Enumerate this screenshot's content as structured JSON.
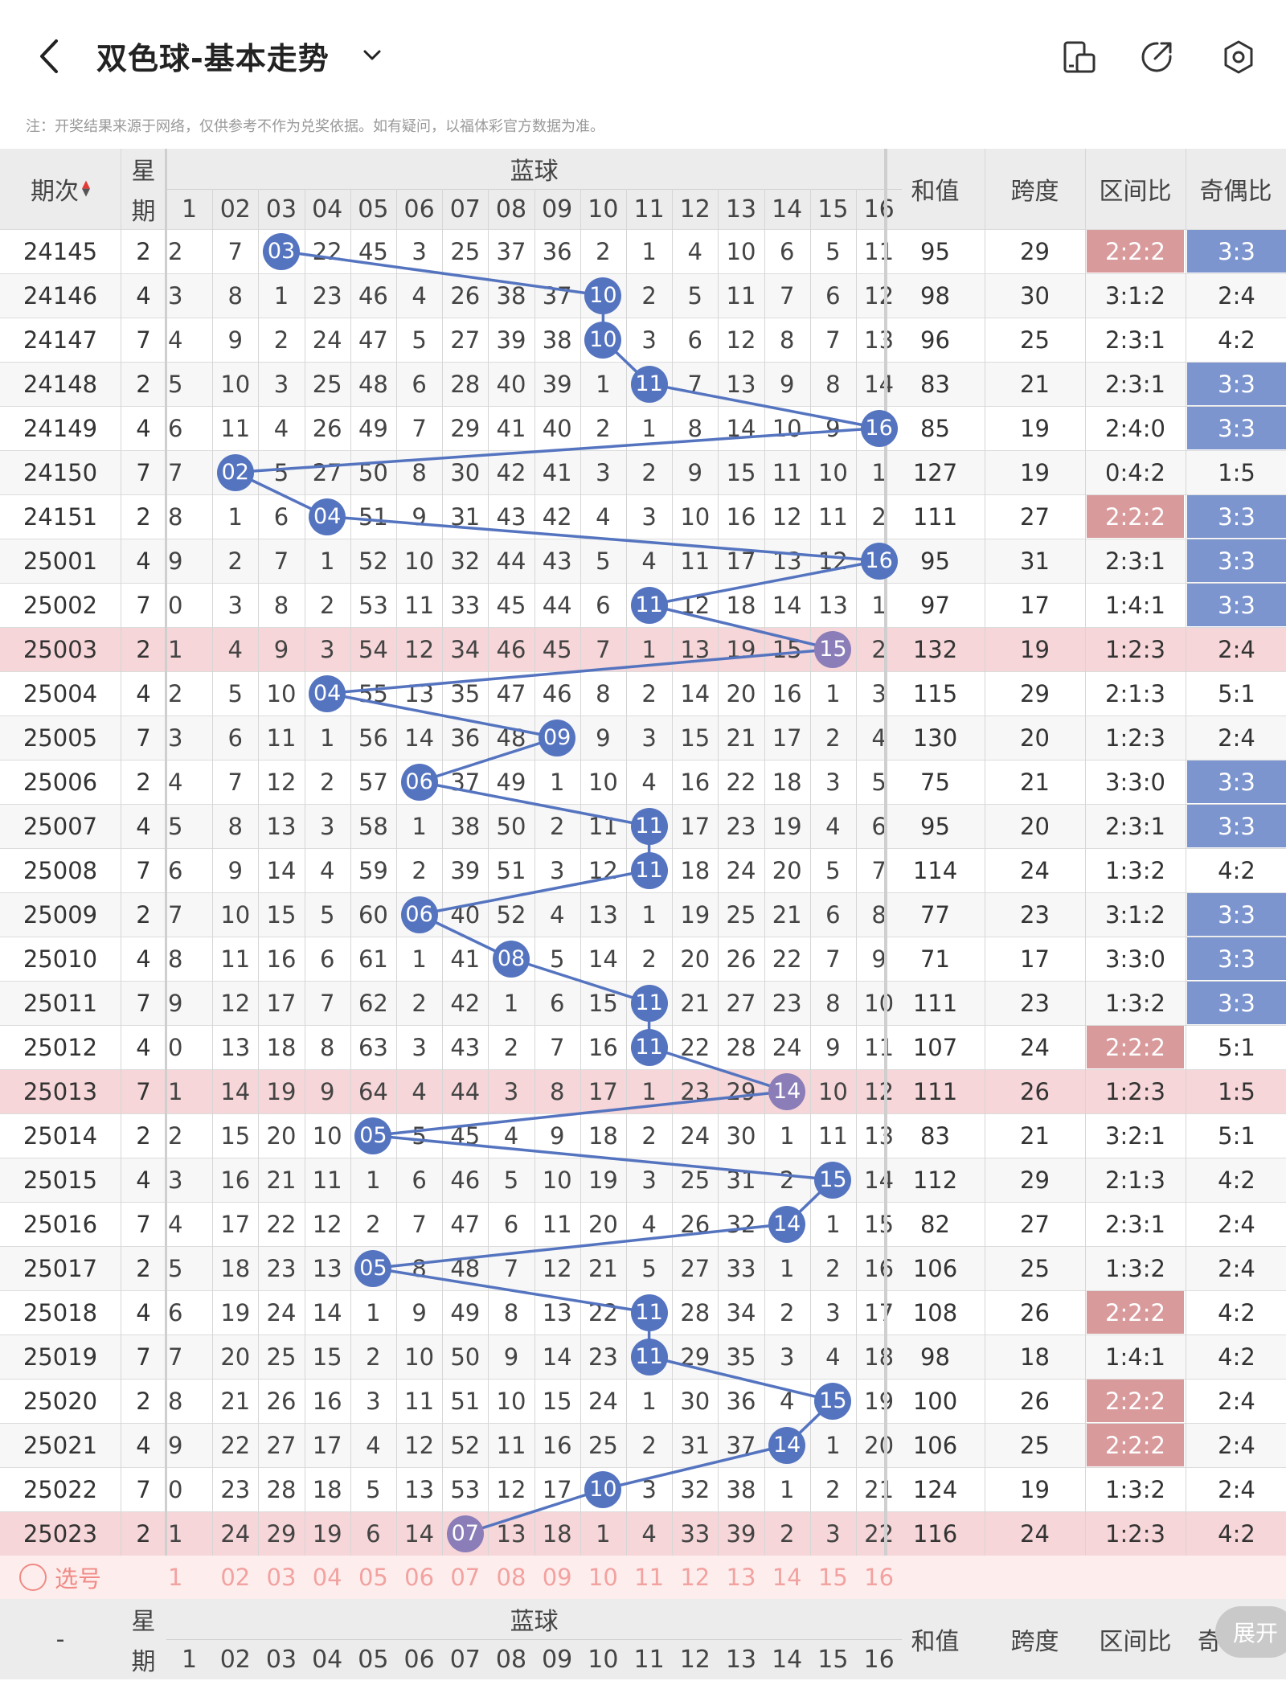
{
  "header": {
    "title": "双色球-基本走势",
    "back_icon": "chevron-left-icon",
    "caret_icon": "chevron-down-icon",
    "icons": [
      "layout-icon",
      "share-icon",
      "settings-icon"
    ]
  },
  "notice": "注：开奖结果来源于网络，仅供参考不作为兑奖依据。如有疑问，以福体彩官方数据为准。",
  "columns": {
    "period": "期次",
    "week_top": "星",
    "week_bottom": "期",
    "blue_title": "蓝球",
    "blue_numbers": [
      "1",
      "02",
      "03",
      "04",
      "05",
      "06",
      "07",
      "08",
      "09",
      "10",
      "11",
      "12",
      "13",
      "14",
      "15",
      "16"
    ],
    "sum": "和值",
    "span": "跨度",
    "zone": "区间比",
    "odd": "奇偶比"
  },
  "footer": {
    "dash": "-",
    "pick_label": "选号",
    "pick_numbers": [
      "1",
      "02",
      "03",
      "04",
      "05",
      "06",
      "07",
      "08",
      "09",
      "10",
      "11",
      "12",
      "13",
      "14",
      "15",
      "16"
    ],
    "odd_partial": "奇",
    "expand_label": "展开"
  },
  "colors": {
    "ball": "#5574c0",
    "ball_highlight": "#8a7db8",
    "zone_highlight": "#d99a9c",
    "odd_highlight": "#7c95cf",
    "row_highlight": "#f6d6d8"
  },
  "rows": [
    {
      "period": "24145",
      "week": "2",
      "cells": [
        "2",
        "7",
        "03",
        "22",
        "45",
        "3",
        "25",
        "37",
        "36",
        "2",
        "1",
        "4",
        "10",
        "6",
        "5",
        "11"
      ],
      "ball": 3,
      "sum": "95",
      "span": "29",
      "zone": "2:2:2",
      "odd": "3:3",
      "zone_hl": true,
      "odd_hl": true,
      "row_hl": false
    },
    {
      "period": "24146",
      "week": "4",
      "cells": [
        "3",
        "8",
        "1",
        "23",
        "46",
        "4",
        "26",
        "38",
        "37",
        "10",
        "2",
        "5",
        "11",
        "7",
        "6",
        "12"
      ],
      "ball": 10,
      "sum": "98",
      "span": "30",
      "zone": "3:1:2",
      "odd": "2:4",
      "zone_hl": false,
      "odd_hl": false,
      "row_hl": false
    },
    {
      "period": "24147",
      "week": "7",
      "cells": [
        "4",
        "9",
        "2",
        "24",
        "47",
        "5",
        "27",
        "39",
        "38",
        "10",
        "3",
        "6",
        "12",
        "8",
        "7",
        "13"
      ],
      "ball": 10,
      "sum": "96",
      "span": "25",
      "zone": "2:3:1",
      "odd": "4:2",
      "zone_hl": false,
      "odd_hl": false,
      "row_hl": false
    },
    {
      "period": "24148",
      "week": "2",
      "cells": [
        "5",
        "10",
        "3",
        "25",
        "48",
        "6",
        "28",
        "40",
        "39",
        "1",
        "11",
        "7",
        "13",
        "9",
        "8",
        "14"
      ],
      "ball": 11,
      "sum": "83",
      "span": "21",
      "zone": "2:3:1",
      "odd": "3:3",
      "zone_hl": false,
      "odd_hl": true,
      "row_hl": false
    },
    {
      "period": "24149",
      "week": "4",
      "cells": [
        "6",
        "11",
        "4",
        "26",
        "49",
        "7",
        "29",
        "41",
        "40",
        "2",
        "1",
        "8",
        "14",
        "10",
        "9",
        "16"
      ],
      "ball": 16,
      "sum": "85",
      "span": "19",
      "zone": "2:4:0",
      "odd": "3:3",
      "zone_hl": false,
      "odd_hl": true,
      "row_hl": false
    },
    {
      "period": "24150",
      "week": "7",
      "cells": [
        "7",
        "02",
        "5",
        "27",
        "50",
        "8",
        "30",
        "42",
        "41",
        "3",
        "2",
        "9",
        "15",
        "11",
        "10",
        "1"
      ],
      "ball": 2,
      "sum": "127",
      "span": "19",
      "zone": "0:4:2",
      "odd": "1:5",
      "zone_hl": false,
      "odd_hl": false,
      "row_hl": false
    },
    {
      "period": "24151",
      "week": "2",
      "cells": [
        "8",
        "1",
        "6",
        "04",
        "51",
        "9",
        "31",
        "43",
        "42",
        "4",
        "3",
        "10",
        "16",
        "12",
        "11",
        "2"
      ],
      "ball": 4,
      "sum": "111",
      "span": "27",
      "zone": "2:2:2",
      "odd": "3:3",
      "zone_hl": true,
      "odd_hl": true,
      "row_hl": false
    },
    {
      "period": "25001",
      "week": "4",
      "cells": [
        "9",
        "2",
        "7",
        "1",
        "52",
        "10",
        "32",
        "44",
        "43",
        "5",
        "4",
        "11",
        "17",
        "13",
        "12",
        "16"
      ],
      "ball": 16,
      "sum": "95",
      "span": "31",
      "zone": "2:3:1",
      "odd": "3:3",
      "zone_hl": false,
      "odd_hl": true,
      "row_hl": false
    },
    {
      "period": "25002",
      "week": "7",
      "cells": [
        "0",
        "3",
        "8",
        "2",
        "53",
        "11",
        "33",
        "45",
        "44",
        "6",
        "11",
        "12",
        "18",
        "14",
        "13",
        "1"
      ],
      "ball": 11,
      "sum": "97",
      "span": "17",
      "zone": "1:4:1",
      "odd": "3:3",
      "zone_hl": false,
      "odd_hl": true,
      "row_hl": false
    },
    {
      "period": "25003",
      "week": "2",
      "cells": [
        "1",
        "4",
        "9",
        "3",
        "54",
        "12",
        "34",
        "46",
        "45",
        "7",
        "1",
        "13",
        "19",
        "15",
        "15",
        "2"
      ],
      "ball": 15,
      "sum": "132",
      "span": "19",
      "zone": "1:2:3",
      "odd": "2:4",
      "zone_hl": false,
      "odd_hl": false,
      "row_hl": true
    },
    {
      "period": "25004",
      "week": "4",
      "cells": [
        "2",
        "5",
        "10",
        "04",
        "55",
        "13",
        "35",
        "47",
        "46",
        "8",
        "2",
        "14",
        "20",
        "16",
        "1",
        "3"
      ],
      "ball": 4,
      "sum": "115",
      "span": "29",
      "zone": "2:1:3",
      "odd": "5:1",
      "zone_hl": false,
      "odd_hl": false,
      "row_hl": false
    },
    {
      "period": "25005",
      "week": "7",
      "cells": [
        "3",
        "6",
        "11",
        "1",
        "56",
        "14",
        "36",
        "48",
        "09",
        "9",
        "3",
        "15",
        "21",
        "17",
        "2",
        "4"
      ],
      "ball": 9,
      "sum": "130",
      "span": "20",
      "zone": "1:2:3",
      "odd": "2:4",
      "zone_hl": false,
      "odd_hl": false,
      "row_hl": false
    },
    {
      "period": "25006",
      "week": "2",
      "cells": [
        "4",
        "7",
        "12",
        "2",
        "57",
        "06",
        "37",
        "49",
        "1",
        "10",
        "4",
        "16",
        "22",
        "18",
        "3",
        "5"
      ],
      "ball": 6,
      "sum": "75",
      "span": "21",
      "zone": "3:3:0",
      "odd": "3:3",
      "zone_hl": false,
      "odd_hl": true,
      "row_hl": false
    },
    {
      "period": "25007",
      "week": "4",
      "cells": [
        "5",
        "8",
        "13",
        "3",
        "58",
        "1",
        "38",
        "50",
        "2",
        "11",
        "11",
        "17",
        "23",
        "19",
        "4",
        "6"
      ],
      "ball": 11,
      "sum": "95",
      "span": "20",
      "zone": "2:3:1",
      "odd": "3:3",
      "zone_hl": false,
      "odd_hl": true,
      "row_hl": false
    },
    {
      "period": "25008",
      "week": "7",
      "cells": [
        "6",
        "9",
        "14",
        "4",
        "59",
        "2",
        "39",
        "51",
        "3",
        "12",
        "11",
        "18",
        "24",
        "20",
        "5",
        "7"
      ],
      "ball": 11,
      "sum": "114",
      "span": "24",
      "zone": "1:3:2",
      "odd": "4:2",
      "zone_hl": false,
      "odd_hl": false,
      "row_hl": false
    },
    {
      "period": "25009",
      "week": "2",
      "cells": [
        "7",
        "10",
        "15",
        "5",
        "60",
        "06",
        "40",
        "52",
        "4",
        "13",
        "1",
        "19",
        "25",
        "21",
        "6",
        "8"
      ],
      "ball": 6,
      "sum": "77",
      "span": "23",
      "zone": "3:1:2",
      "odd": "3:3",
      "zone_hl": false,
      "odd_hl": true,
      "row_hl": false
    },
    {
      "period": "25010",
      "week": "4",
      "cells": [
        "8",
        "11",
        "16",
        "6",
        "61",
        "1",
        "41",
        "08",
        "5",
        "14",
        "2",
        "20",
        "26",
        "22",
        "7",
        "9"
      ],
      "ball": 8,
      "sum": "71",
      "span": "17",
      "zone": "3:3:0",
      "odd": "3:3",
      "zone_hl": false,
      "odd_hl": true,
      "row_hl": false
    },
    {
      "period": "25011",
      "week": "7",
      "cells": [
        "9",
        "12",
        "17",
        "7",
        "62",
        "2",
        "42",
        "1",
        "6",
        "15",
        "11",
        "21",
        "27",
        "23",
        "8",
        "10"
      ],
      "ball": 11,
      "sum": "111",
      "span": "23",
      "zone": "1:3:2",
      "odd": "3:3",
      "zone_hl": false,
      "odd_hl": true,
      "row_hl": false
    },
    {
      "period": "25012",
      "week": "4",
      "cells": [
        "0",
        "13",
        "18",
        "8",
        "63",
        "3",
        "43",
        "2",
        "7",
        "16",
        "11",
        "22",
        "28",
        "24",
        "9",
        "11"
      ],
      "ball": 11,
      "sum": "107",
      "span": "24",
      "zone": "2:2:2",
      "odd": "5:1",
      "zone_hl": true,
      "odd_hl": false,
      "row_hl": false
    },
    {
      "period": "25013",
      "week": "7",
      "cells": [
        "1",
        "14",
        "19",
        "9",
        "64",
        "4",
        "44",
        "3",
        "8",
        "17",
        "1",
        "23",
        "29",
        "14",
        "10",
        "12"
      ],
      "ball": 14,
      "sum": "111",
      "span": "26",
      "zone": "1:2:3",
      "odd": "1:5",
      "zone_hl": false,
      "odd_hl": false,
      "row_hl": true
    },
    {
      "period": "25014",
      "week": "2",
      "cells": [
        "2",
        "15",
        "20",
        "10",
        "05",
        "5",
        "45",
        "4",
        "9",
        "18",
        "2",
        "24",
        "30",
        "1",
        "11",
        "13"
      ],
      "ball": 5,
      "sum": "83",
      "span": "21",
      "zone": "3:2:1",
      "odd": "5:1",
      "zone_hl": false,
      "odd_hl": false,
      "row_hl": false
    },
    {
      "period": "25015",
      "week": "4",
      "cells": [
        "3",
        "16",
        "21",
        "11",
        "1",
        "6",
        "46",
        "5",
        "10",
        "19",
        "3",
        "25",
        "31",
        "2",
        "15",
        "14"
      ],
      "ball": 15,
      "sum": "112",
      "span": "29",
      "zone": "2:1:3",
      "odd": "4:2",
      "zone_hl": false,
      "odd_hl": false,
      "row_hl": false
    },
    {
      "period": "25016",
      "week": "7",
      "cells": [
        "4",
        "17",
        "22",
        "12",
        "2",
        "7",
        "47",
        "6",
        "11",
        "20",
        "4",
        "26",
        "32",
        "14",
        "1",
        "15"
      ],
      "ball": 14,
      "sum": "82",
      "span": "27",
      "zone": "2:3:1",
      "odd": "2:4",
      "zone_hl": false,
      "odd_hl": false,
      "row_hl": false
    },
    {
      "period": "25017",
      "week": "2",
      "cells": [
        "5",
        "18",
        "23",
        "13",
        "05",
        "8",
        "48",
        "7",
        "12",
        "21",
        "5",
        "27",
        "33",
        "1",
        "2",
        "16"
      ],
      "ball": 5,
      "sum": "106",
      "span": "25",
      "zone": "1:3:2",
      "odd": "2:4",
      "zone_hl": false,
      "odd_hl": false,
      "row_hl": false
    },
    {
      "period": "25018",
      "week": "4",
      "cells": [
        "6",
        "19",
        "24",
        "14",
        "1",
        "9",
        "49",
        "8",
        "13",
        "22",
        "11",
        "28",
        "34",
        "2",
        "3",
        "17"
      ],
      "ball": 11,
      "sum": "108",
      "span": "26",
      "zone": "2:2:2",
      "odd": "4:2",
      "zone_hl": true,
      "odd_hl": false,
      "row_hl": false
    },
    {
      "period": "25019",
      "week": "7",
      "cells": [
        "7",
        "20",
        "25",
        "15",
        "2",
        "10",
        "50",
        "9",
        "14",
        "23",
        "11",
        "29",
        "35",
        "3",
        "4",
        "18"
      ],
      "ball": 11,
      "sum": "98",
      "span": "18",
      "zone": "1:4:1",
      "odd": "4:2",
      "zone_hl": false,
      "odd_hl": false,
      "row_hl": false
    },
    {
      "period": "25020",
      "week": "2",
      "cells": [
        "8",
        "21",
        "26",
        "16",
        "3",
        "11",
        "51",
        "10",
        "15",
        "24",
        "1",
        "30",
        "36",
        "4",
        "15",
        "19"
      ],
      "ball": 15,
      "sum": "100",
      "span": "26",
      "zone": "2:2:2",
      "odd": "2:4",
      "zone_hl": true,
      "odd_hl": false,
      "row_hl": false
    },
    {
      "period": "25021",
      "week": "4",
      "cells": [
        "9",
        "22",
        "27",
        "17",
        "4",
        "12",
        "52",
        "11",
        "16",
        "25",
        "2",
        "31",
        "37",
        "14",
        "1",
        "20"
      ],
      "ball": 14,
      "sum": "106",
      "span": "25",
      "zone": "2:2:2",
      "odd": "2:4",
      "zone_hl": true,
      "odd_hl": false,
      "row_hl": false
    },
    {
      "period": "25022",
      "week": "7",
      "cells": [
        "0",
        "23",
        "28",
        "18",
        "5",
        "13",
        "53",
        "12",
        "17",
        "10",
        "3",
        "32",
        "38",
        "1",
        "2",
        "21"
      ],
      "ball": 10,
      "sum": "124",
      "span": "19",
      "zone": "1:3:2",
      "odd": "2:4",
      "zone_hl": false,
      "odd_hl": false,
      "row_hl": false
    },
    {
      "period": "25023",
      "week": "2",
      "cells": [
        "1",
        "24",
        "29",
        "19",
        "6",
        "14",
        "07",
        "13",
        "18",
        "1",
        "4",
        "33",
        "39",
        "2",
        "3",
        "22"
      ],
      "ball": 7,
      "sum": "116",
      "span": "24",
      "zone": "1:2:3",
      "odd": "4:2",
      "zone_hl": false,
      "odd_hl": false,
      "row_hl": true
    }
  ]
}
